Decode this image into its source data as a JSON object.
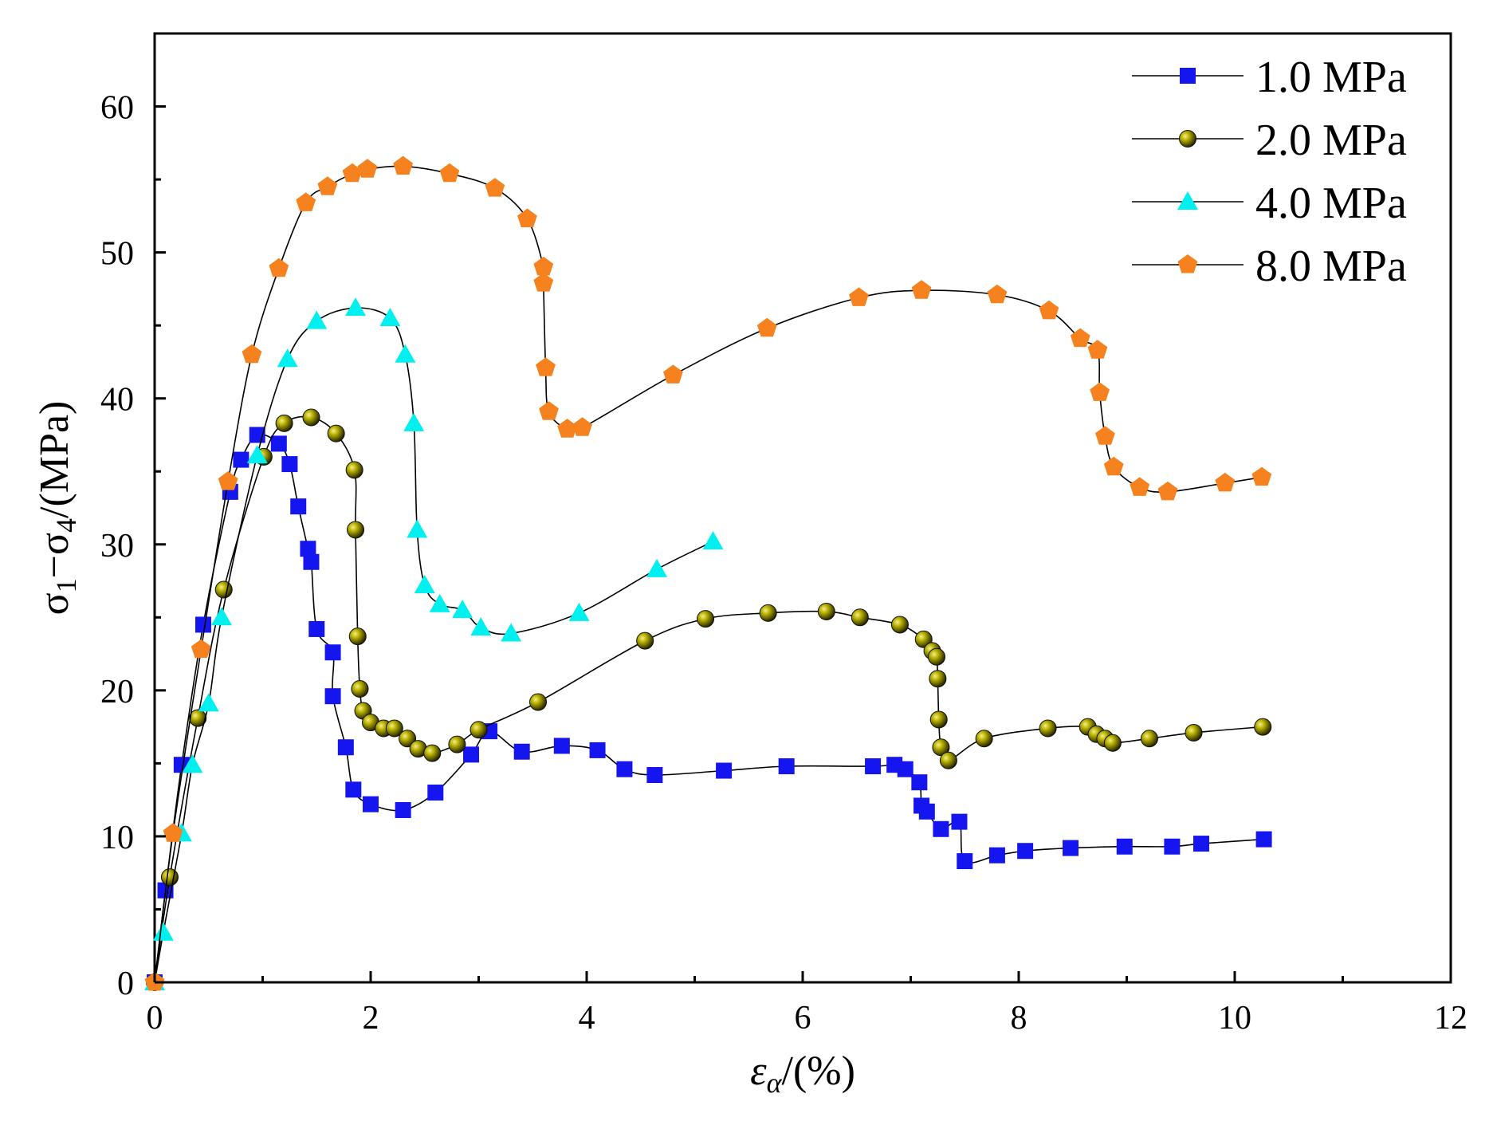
{
  "chart_data": {
    "type": "scatter",
    "xlim": [
      0,
      12
    ],
    "ylim": [
      0,
      65
    ],
    "x_ticks": [
      0,
      2,
      4,
      6,
      8,
      10,
      12
    ],
    "y_ticks": [
      0,
      10,
      20,
      30,
      40,
      50,
      60
    ],
    "x_tick_labels": [
      "0",
      "2",
      "4",
      "6",
      "8",
      "10",
      "12"
    ],
    "y_tick_labels": [
      "0",
      "10",
      "20",
      "30",
      "40",
      "50",
      "60"
    ],
    "xlabel": {
      "symbol": "ε",
      "subscript": "α",
      "rest": "/(%)"
    },
    "ylabel": {
      "s1": "σ",
      "sub1": "1",
      "dash": "−",
      "s2": "σ",
      "sub2": "4",
      "rest": "/(MPa)"
    },
    "legend_position": "top-right",
    "grid": false,
    "series": [
      {
        "name": "1.0 MPa",
        "marker": "square",
        "color": "#1515f0",
        "points": [
          [
            0,
            0
          ],
          [
            0.1,
            6.3
          ],
          [
            0.25,
            14.9
          ],
          [
            0.45,
            24.5
          ],
          [
            0.7,
            33.6
          ],
          [
            0.8,
            35.8
          ],
          [
            0.95,
            37.5
          ],
          [
            1.15,
            36.9
          ],
          [
            1.25,
            35.5
          ],
          [
            1.33,
            32.6
          ],
          [
            1.42,
            29.7
          ],
          [
            1.45,
            28.8
          ],
          [
            1.5,
            24.2
          ],
          [
            1.65,
            22.6
          ],
          [
            1.65,
            19.6
          ],
          [
            1.77,
            16.1
          ],
          [
            1.84,
            13.2
          ],
          [
            2.0,
            12.2
          ],
          [
            2.3,
            11.8
          ],
          [
            2.6,
            13.0
          ],
          [
            2.93,
            15.6
          ],
          [
            3.1,
            17.2
          ],
          [
            3.4,
            15.8
          ],
          [
            3.77,
            16.2
          ],
          [
            4.1,
            15.9
          ],
          [
            4.35,
            14.6
          ],
          [
            4.63,
            14.2
          ],
          [
            5.27,
            14.5
          ],
          [
            5.85,
            14.8
          ],
          [
            6.65,
            14.8
          ],
          [
            6.85,
            14.9
          ],
          [
            6.95,
            14.6
          ],
          [
            7.08,
            13.7
          ],
          [
            7.1,
            12.1
          ],
          [
            7.15,
            11.7
          ],
          [
            7.28,
            10.5
          ],
          [
            7.45,
            11.0
          ],
          [
            7.5,
            8.3
          ],
          [
            7.8,
            8.7
          ],
          [
            8.06,
            9.0
          ],
          [
            8.48,
            9.2
          ],
          [
            8.98,
            9.3
          ],
          [
            9.42,
            9.3
          ],
          [
            9.69,
            9.5
          ],
          [
            10.27,
            9.8
          ]
        ]
      },
      {
        "name": "2.0 MPa",
        "marker": "sphere",
        "color": "#d8d200",
        "points": [
          [
            0,
            0
          ],
          [
            0.14,
            7.2
          ],
          [
            0.4,
            18.1
          ],
          [
            0.64,
            26.9
          ],
          [
            1.01,
            36.0
          ],
          [
            1.2,
            38.3
          ],
          [
            1.45,
            38.7
          ],
          [
            1.68,
            37.6
          ],
          [
            1.85,
            35.1
          ],
          [
            1.86,
            31.0
          ],
          [
            1.88,
            23.7
          ],
          [
            1.9,
            20.1
          ],
          [
            1.93,
            18.6
          ],
          [
            2.0,
            17.8
          ],
          [
            2.12,
            17.4
          ],
          [
            2.22,
            17.4
          ],
          [
            2.34,
            16.7
          ],
          [
            2.44,
            16.0
          ],
          [
            2.57,
            15.7
          ],
          [
            2.8,
            16.3
          ],
          [
            3.0,
            17.3
          ],
          [
            3.55,
            19.2
          ],
          [
            4.54,
            23.4
          ],
          [
            5.1,
            24.9
          ],
          [
            5.68,
            25.3
          ],
          [
            6.22,
            25.4
          ],
          [
            6.53,
            25.0
          ],
          [
            6.9,
            24.5
          ],
          [
            7.12,
            23.5
          ],
          [
            7.2,
            22.7
          ],
          [
            7.24,
            22.3
          ],
          [
            7.25,
            20.8
          ],
          [
            7.26,
            18.0
          ],
          [
            7.28,
            16.1
          ],
          [
            7.35,
            15.2
          ],
          [
            7.68,
            16.7
          ],
          [
            8.27,
            17.4
          ],
          [
            8.64,
            17.5
          ],
          [
            8.72,
            17.0
          ],
          [
            8.8,
            16.7
          ],
          [
            8.87,
            16.4
          ],
          [
            9.21,
            16.7
          ],
          [
            9.62,
            17.1
          ],
          [
            10.26,
            17.5
          ]
        ]
      },
      {
        "name": "4.0 MPa",
        "marker": "triangle",
        "color": "#00f0f0",
        "points": [
          [
            0,
            0
          ],
          [
            0.08,
            3.4
          ],
          [
            0.25,
            10.2
          ],
          [
            0.35,
            14.9
          ],
          [
            0.5,
            19.1
          ],
          [
            0.62,
            25.0
          ],
          [
            0.95,
            36.1
          ],
          [
            1.23,
            42.7
          ],
          [
            1.5,
            45.3
          ],
          [
            1.86,
            46.2
          ],
          [
            2.18,
            45.5
          ],
          [
            2.32,
            43.0
          ],
          [
            2.4,
            38.3
          ],
          [
            2.43,
            31.0
          ],
          [
            2.5,
            27.2
          ],
          [
            2.64,
            25.9
          ],
          [
            2.85,
            25.5
          ],
          [
            3.02,
            24.3
          ],
          [
            3.3,
            23.9
          ],
          [
            3.93,
            25.3
          ],
          [
            4.65,
            28.3
          ],
          [
            5.17,
            30.2
          ]
        ]
      },
      {
        "name": "8.0 MPa",
        "marker": "pentagon",
        "color": "#f5821e",
        "points": [
          [
            0,
            0
          ],
          [
            0.17,
            10.2
          ],
          [
            0.43,
            22.8
          ],
          [
            0.68,
            34.3
          ],
          [
            0.9,
            43.0
          ],
          [
            1.15,
            48.9
          ],
          [
            1.4,
            53.4
          ],
          [
            1.6,
            54.5
          ],
          [
            1.83,
            55.4
          ],
          [
            1.97,
            55.7
          ],
          [
            2.3,
            55.9
          ],
          [
            2.73,
            55.4
          ],
          [
            3.15,
            54.4
          ],
          [
            3.45,
            52.3
          ],
          [
            3.6,
            49.0
          ],
          [
            3.6,
            47.9
          ],
          [
            3.62,
            42.1
          ],
          [
            3.65,
            39.1
          ],
          [
            3.82,
            37.9
          ],
          [
            3.96,
            38.0
          ],
          [
            4.8,
            41.6
          ],
          [
            5.67,
            44.8
          ],
          [
            6.52,
            46.9
          ],
          [
            7.1,
            47.4
          ],
          [
            7.8,
            47.1
          ],
          [
            8.28,
            46.0
          ],
          [
            8.57,
            44.1
          ],
          [
            8.73,
            43.3
          ],
          [
            8.75,
            40.4
          ],
          [
            8.8,
            37.4
          ],
          [
            8.88,
            35.3
          ],
          [
            9.12,
            33.9
          ],
          [
            9.38,
            33.6
          ],
          [
            9.91,
            34.2
          ],
          [
            10.25,
            34.6
          ]
        ]
      }
    ]
  }
}
